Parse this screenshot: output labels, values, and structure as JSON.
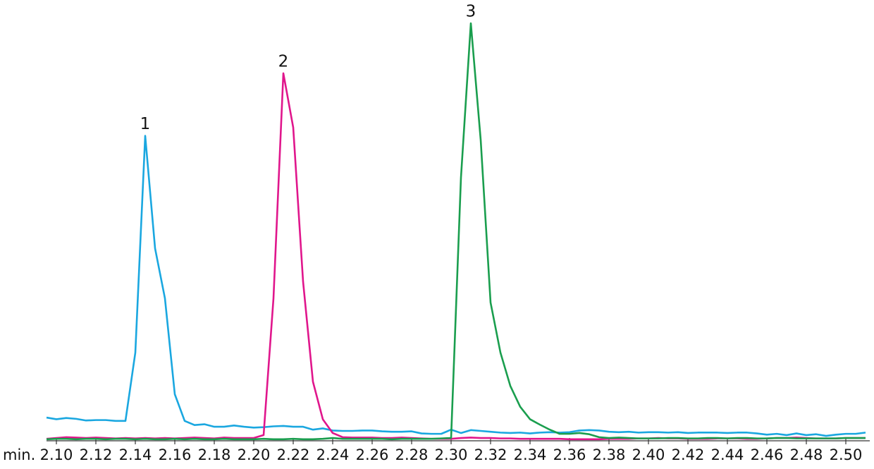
{
  "chart_data": {
    "type": "line",
    "xlabel": "min.",
    "x": [
      2.095,
      2.1,
      2.105,
      2.11,
      2.115,
      2.12,
      2.125,
      2.13,
      2.135,
      2.14,
      2.145,
      2.15,
      2.155,
      2.16,
      2.165,
      2.17,
      2.175,
      2.18,
      2.185,
      2.19,
      2.195,
      2.2,
      2.205,
      2.21,
      2.215,
      2.22,
      2.225,
      2.23,
      2.235,
      2.24,
      2.245,
      2.25,
      2.255,
      2.26,
      2.265,
      2.27,
      2.275,
      2.28,
      2.285,
      2.29,
      2.295,
      2.3,
      2.305,
      2.31,
      2.315,
      2.32,
      2.325,
      2.33,
      2.335,
      2.34,
      2.345,
      2.35,
      2.355,
      2.36,
      2.365,
      2.37,
      2.375,
      2.38,
      2.385,
      2.39,
      2.395,
      2.4,
      2.405,
      2.41,
      2.415,
      2.42,
      2.425,
      2.43,
      2.435,
      2.44,
      2.445,
      2.45,
      2.455,
      2.46,
      2.465,
      2.47,
      2.475,
      2.48,
      2.485,
      2.49,
      2.495,
      2.5,
      2.505,
      2.51
    ],
    "series": [
      {
        "name": "1",
        "color": "#1aa7e0",
        "values": [
          5.4,
          5.0,
          5.3,
          5.1,
          4.7,
          4.8,
          4.8,
          4.6,
          4.6,
          21,
          73,
          46,
          34,
          11,
          4.6,
          3.6,
          3.8,
          3.2,
          3.2,
          3.5,
          3.2,
          3.0,
          3.1,
          3.3,
          3.4,
          3.2,
          3.2,
          2.5,
          2.8,
          2.3,
          2.2,
          2.2,
          2.3,
          2.3,
          2.1,
          2.0,
          2.0,
          2.1,
          1.6,
          1.5,
          1.5,
          2.5,
          1.7,
          2.4,
          2.2,
          2.0,
          1.8,
          1.7,
          1.8,
          1.6,
          1.8,
          1.9,
          1.8,
          1.9,
          2.3,
          2.4,
          2.3,
          2.0,
          1.9,
          2.0,
          1.8,
          1.9,
          1.9,
          1.8,
          1.9,
          1.7,
          1.8,
          1.8,
          1.8,
          1.7,
          1.8,
          1.8,
          1.6,
          1.3,
          1.5,
          1.2,
          1.6,
          1.2,
          1.4,
          1.0,
          1.3,
          1.5,
          1.5,
          1.8
        ]
      },
      {
        "name": "2",
        "color": "#e0168c",
        "values": [
          0.3,
          0.5,
          0.7,
          0.6,
          0.5,
          0.6,
          0.5,
          0.4,
          0.5,
          0.4,
          0.5,
          0.4,
          0.5,
          0.4,
          0.5,
          0.6,
          0.5,
          0.4,
          0.6,
          0.5,
          0.5,
          0.5,
          1.2,
          34,
          88,
          75,
          38,
          14,
          5,
          1.7,
          0.7,
          0.6,
          0.6,
          0.6,
          0.5,
          0.5,
          0.6,
          0.5,
          0.4,
          0.3,
          0.3,
          0.3,
          0.5,
          0.6,
          0.5,
          0.5,
          0.4,
          0.4,
          0.3,
          0.3,
          0.3,
          0.3,
          0.3,
          0.2,
          0.2,
          0.2,
          0.2,
          0.3,
          0.3,
          0.3,
          0.4,
          0.4,
          0.5,
          0.4,
          0.4,
          0.3,
          0.3,
          0.3,
          0.4,
          0.4,
          0.4,
          0.3,
          0.3,
          0.4,
          0.5,
          0.5,
          0.6,
          0.5,
          0.4,
          0.4,
          0.4,
          0.5,
          0.5,
          0.5
        ]
      },
      {
        "name": "3",
        "color": "#1a9e4e",
        "values": [
          0.2,
          0.3,
          0.3,
          0.2,
          0.3,
          0.3,
          0.2,
          0.3,
          0.3,
          0.2,
          0.3,
          0.2,
          0.2,
          0.3,
          0.2,
          0.3,
          0.2,
          0.2,
          0.3,
          0.2,
          0.2,
          0.2,
          0.3,
          0.2,
          0.2,
          0.3,
          0.2,
          0.2,
          0.3,
          0.5,
          0.3,
          0.3,
          0.3,
          0.3,
          0.3,
          0.2,
          0.3,
          0.3,
          0.3,
          0.3,
          0.4,
          0.5,
          63,
          100,
          72,
          33,
          21,
          13,
          8,
          5,
          3.7,
          2.5,
          1.5,
          1.5,
          1.7,
          1.4,
          0.7,
          0.5,
          0.6,
          0.5,
          0.4,
          0.4,
          0.4,
          0.5,
          0.5,
          0.4,
          0.4,
          0.5,
          0.5,
          0.4,
          0.5,
          0.5,
          0.4,
          0.4,
          0.5,
          0.5,
          0.4,
          0.4,
          0.4,
          0.4,
          0.4,
          0.5,
          0.5,
          0.5
        ]
      }
    ],
    "xlim": [
      2.095,
      2.512
    ],
    "ylim": [
      0,
      100
    ],
    "xticks": [
      {
        "value": 2.1,
        "label": "2.10"
      },
      {
        "value": 2.12,
        "label": "2.12"
      },
      {
        "value": 2.14,
        "label": "2.14"
      },
      {
        "value": 2.16,
        "label": "2.16"
      },
      {
        "value": 2.18,
        "label": "2.18"
      },
      {
        "value": 2.2,
        "label": "2.20"
      },
      {
        "value": 2.22,
        "label": "2.22"
      },
      {
        "value": 2.24,
        "label": "2.24"
      },
      {
        "value": 2.26,
        "label": "2.26"
      },
      {
        "value": 2.28,
        "label": "2.28"
      },
      {
        "value": 2.3,
        "label": "2.30"
      },
      {
        "value": 2.32,
        "label": "2.32"
      },
      {
        "value": 2.34,
        "label": "2.34"
      },
      {
        "value": 2.36,
        "label": "2.36"
      },
      {
        "value": 2.38,
        "label": "2.38"
      },
      {
        "value": 2.4,
        "label": "2.40"
      },
      {
        "value": 2.42,
        "label": "2.42"
      },
      {
        "value": 2.44,
        "label": "2.44"
      },
      {
        "value": 2.46,
        "label": "2.46"
      },
      {
        "value": 2.48,
        "label": "2.48"
      },
      {
        "value": 2.5,
        "label": "2.50"
      }
    ]
  }
}
